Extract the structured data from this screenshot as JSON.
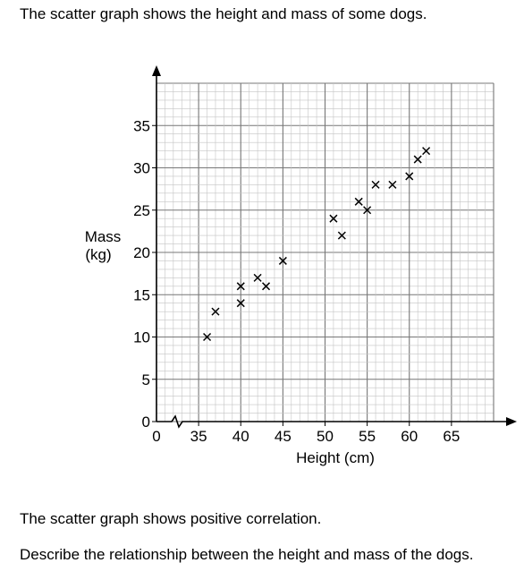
{
  "intro_text": "The scatter graph shows the height and mass of some dogs.",
  "question_1": "The scatter graph shows positive correlation.",
  "question_2": "Describe the relationship between the height and mass of the dogs.",
  "chart_data": {
    "type": "scatter",
    "title": "",
    "xlabel": "Height (cm)",
    "ylabel": [
      "Mass",
      "(kg)"
    ],
    "x_origin_label": "0",
    "x_axis_break": true,
    "xlim": [
      30,
      70
    ],
    "ylim": [
      0,
      40
    ],
    "x_ticks": [
      35,
      40,
      45,
      50,
      55,
      60,
      65
    ],
    "y_ticks": [
      0,
      5,
      10,
      15,
      20,
      25,
      30,
      35
    ],
    "grid": true,
    "marker": "cross",
    "points": [
      {
        "x": 36,
        "y": 10
      },
      {
        "x": 37,
        "y": 13
      },
      {
        "x": 40,
        "y": 14
      },
      {
        "x": 40,
        "y": 16
      },
      {
        "x": 42,
        "y": 17
      },
      {
        "x": 43,
        "y": 16
      },
      {
        "x": 45,
        "y": 19
      },
      {
        "x": 51,
        "y": 24
      },
      {
        "x": 52,
        "y": 22
      },
      {
        "x": 54,
        "y": 26
      },
      {
        "x": 55,
        "y": 25
      },
      {
        "x": 56,
        "y": 28
      },
      {
        "x": 58,
        "y": 28
      },
      {
        "x": 60,
        "y": 29
      },
      {
        "x": 61,
        "y": 31
      },
      {
        "x": 62,
        "y": 32
      }
    ]
  }
}
